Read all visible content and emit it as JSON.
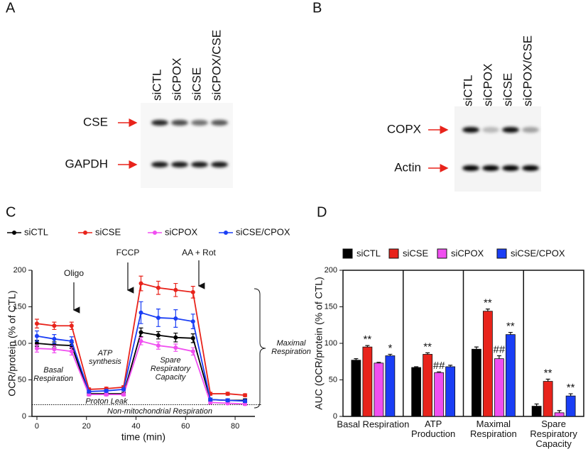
{
  "blots": [
    {
      "panel": "A",
      "lanes": [
        "siCTL",
        "siCPOX",
        "siCSE",
        "siCPOX/CSE"
      ],
      "rows": [
        "CSE",
        "GAPDH"
      ]
    },
    {
      "panel": "B",
      "lanes": [
        "siCTL",
        "siCPOX",
        "siCSE",
        "siCPOX/CSE"
      ],
      "rows": [
        "COPX",
        "Actin"
      ]
    }
  ],
  "chart_data": [
    {
      "type": "line",
      "panel": "C",
      "xlabel": "time (min)",
      "ylabel": "OCR/protein (% of CTL)",
      "x": [
        0,
        7,
        14,
        21,
        28,
        35,
        42,
        49,
        56,
        63,
        70,
        77,
        84
      ],
      "xlim": [
        -2,
        88
      ],
      "xticks": [
        0,
        20,
        40,
        60,
        80
      ],
      "ylim": [
        0,
        200
      ],
      "yticks": [
        0,
        50,
        100,
        150,
        200
      ],
      "reference_line": 16,
      "annotations": [
        "Oligo",
        "FCCP",
        "AA + Rot",
        "Basal\nRespiration",
        "ATP\nsynthesis",
        "Spare\nRespiratory\nCapacity",
        "Proton Leak",
        "Non-mitochondrial Respiration",
        "Maximal\nRespiration"
      ],
      "series": [
        {
          "name": "siCTL",
          "color": "#000000",
          "values": [
            100,
            98,
            97,
            31,
            31,
            31,
            115,
            111,
            108,
            107,
            23,
            22,
            22
          ],
          "errors": [
            4,
            4,
            4,
            2,
            2,
            2,
            6,
            5,
            6,
            6,
            2,
            2,
            2
          ]
        },
        {
          "name": "siCSE",
          "color": "#e8231b",
          "values": [
            127,
            124,
            124,
            37,
            38,
            40,
            182,
            176,
            173,
            170,
            31,
            31,
            29
          ],
          "errors": [
            6,
            5,
            5,
            2,
            2,
            2,
            10,
            9,
            9,
            8,
            2,
            2,
            2
          ]
        },
        {
          "name": "siCPOX",
          "color": "#f04ff0",
          "values": [
            93,
            92,
            89,
            30,
            30,
            30,
            103,
            97,
            94,
            89,
            19,
            18,
            17
          ],
          "errors": [
            5,
            5,
            5,
            2,
            2,
            2,
            5,
            5,
            5,
            5,
            2,
            2,
            2
          ]
        },
        {
          "name": "siCSE/CPOX",
          "color": "#1a3ef5",
          "values": [
            110,
            106,
            103,
            34,
            35,
            37,
            142,
            135,
            134,
            130,
            23,
            22,
            21
          ],
          "errors": [
            7,
            6,
            6,
            2,
            2,
            2,
            15,
            12,
            12,
            10,
            2,
            2,
            2
          ]
        }
      ]
    },
    {
      "type": "bar",
      "panel": "D",
      "ylabel": "AUC (OCR/protein (% of CTL)",
      "categories": [
        "Basal Respiration",
        "ATP\nProduction",
        "Maximal\nRespiration",
        "Spare\nRespiratory\nCapacity"
      ],
      "ylim": [
        0,
        200
      ],
      "yticks": [
        0,
        50,
        100,
        150,
        200
      ],
      "series": [
        {
          "name": "siCTL",
          "color": "#000000",
          "values": [
            77,
            67,
            92,
            14
          ],
          "errors": [
            2,
            1,
            3,
            3
          ],
          "sig": [
            null,
            null,
            null,
            null
          ]
        },
        {
          "name": "siCSE",
          "color": "#e8231b",
          "values": [
            95,
            85,
            144,
            48
          ],
          "errors": [
            2,
            2,
            3,
            3
          ],
          "sig": [
            "**",
            "**",
            "**",
            "**"
          ]
        },
        {
          "name": "siCPOX",
          "color": "#f04ff0",
          "values": [
            73,
            60,
            79,
            5
          ],
          "errors": [
            1,
            1,
            4,
            3
          ],
          "sig": [
            null,
            "##",
            "##",
            null
          ]
        },
        {
          "name": "siCSE/CPOX",
          "color": "#1a3ef5",
          "values": [
            83,
            68,
            112,
            28
          ],
          "errors": [
            2,
            2,
            3,
            3
          ],
          "sig": [
            "*",
            null,
            "**",
            "**"
          ]
        }
      ]
    }
  ]
}
